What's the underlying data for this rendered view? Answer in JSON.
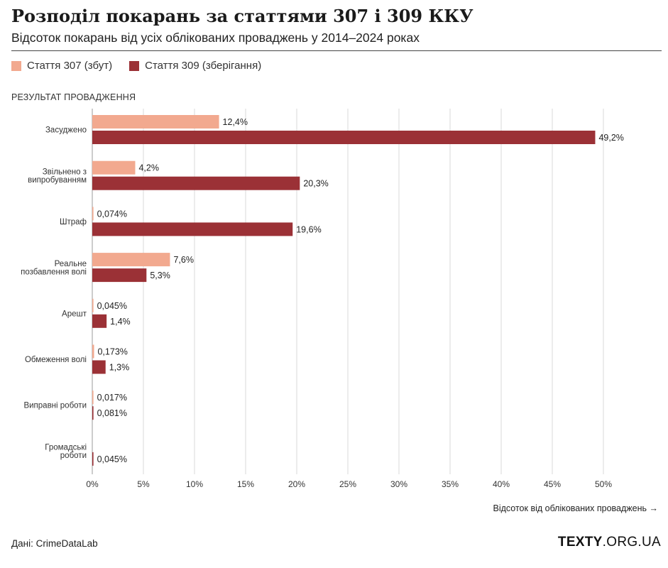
{
  "header": {
    "title": "Розподіл покарань за статтями 307 і 309 ККУ",
    "subtitle": "Відсоток покарань від усіх облікованих проваджень у 2014–2024 роках"
  },
  "legend": {
    "placement": "top-left",
    "items": [
      {
        "label": "Стаття 307 (збут)",
        "color": "#f2a98f"
      },
      {
        "label": "Стаття 309 (зберігання)",
        "color": "#9b3136"
      }
    ]
  },
  "footer": {
    "source": "Дані: CrimeDataLab",
    "brand_bold": "TEXTY",
    "brand_rest": ".ORG.UA"
  },
  "chart_data": {
    "type": "bar",
    "orientation": "horizontal",
    "category_axis_label": "РЕЗУЛЬТАТ ПРОВАДЖЕННЯ",
    "xlabel": "Відсоток від облікованих проваджень →",
    "xlim": [
      0,
      50
    ],
    "xticks": [
      0,
      5,
      10,
      15,
      20,
      25,
      30,
      35,
      40,
      45,
      50
    ],
    "xtick_labels": [
      "0%",
      "5%",
      "10%",
      "15%",
      "20%",
      "25%",
      "30%",
      "35%",
      "40%",
      "45%",
      "50%"
    ],
    "grid": true,
    "categories": [
      [
        "Засуджено"
      ],
      [
        "Звільнено з",
        "випробуванням"
      ],
      [
        "Штраф"
      ],
      [
        "Реальне",
        "позбавлення волі"
      ],
      [
        "Арешт"
      ],
      [
        "Обмеження волі"
      ],
      [
        "Виправні роботи"
      ],
      [
        "Громадські",
        "роботи"
      ]
    ],
    "series": [
      {
        "name": "Стаття 307 (збут)",
        "color": "#f2a98f",
        "values": [
          12.4,
          4.2,
          0.074,
          7.6,
          0.045,
          0.173,
          0.017,
          null
        ],
        "labels": [
          "12,4%",
          "4,2%",
          "0,074%",
          "7,6%",
          "0,045%",
          "0,173%",
          "0,017%",
          null
        ]
      },
      {
        "name": "Стаття 309 (зберігання)",
        "color": "#9b3136",
        "values": [
          49.2,
          20.3,
          19.6,
          5.3,
          1.4,
          1.3,
          0.081,
          0.045
        ],
        "labels": [
          "49,2%",
          "20,3%",
          "19,6%",
          "5,3%",
          "1,4%",
          "1,3%",
          "0,081%",
          "0,045%"
        ]
      }
    ]
  }
}
